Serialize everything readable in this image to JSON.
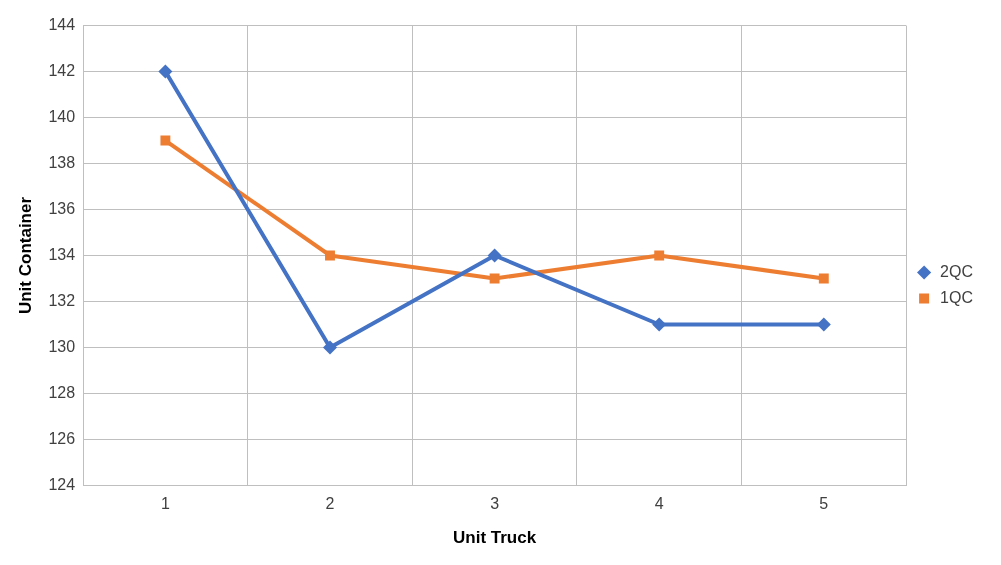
{
  "chart_data": {
    "type": "line",
    "xlabel": "Unit Truck",
    "ylabel": "Unit Container",
    "categories": [
      "1",
      "2",
      "3",
      "4",
      "5"
    ],
    "series": [
      {
        "name": "2QC",
        "color": "#4472c4",
        "values": [
          142,
          130,
          134,
          131,
          131
        ],
        "marker": "diamond"
      },
      {
        "name": "1QC",
        "color": "#ed7d31",
        "values": [
          139,
          134,
          133,
          134,
          133
        ],
        "marker": "square"
      }
    ],
    "ylim": [
      124,
      144
    ],
    "yticks": [
      124,
      126,
      128,
      130,
      132,
      134,
      136,
      138,
      140,
      142,
      144
    ],
    "grid": true,
    "legend": "right",
    "line_style": "solid"
  }
}
